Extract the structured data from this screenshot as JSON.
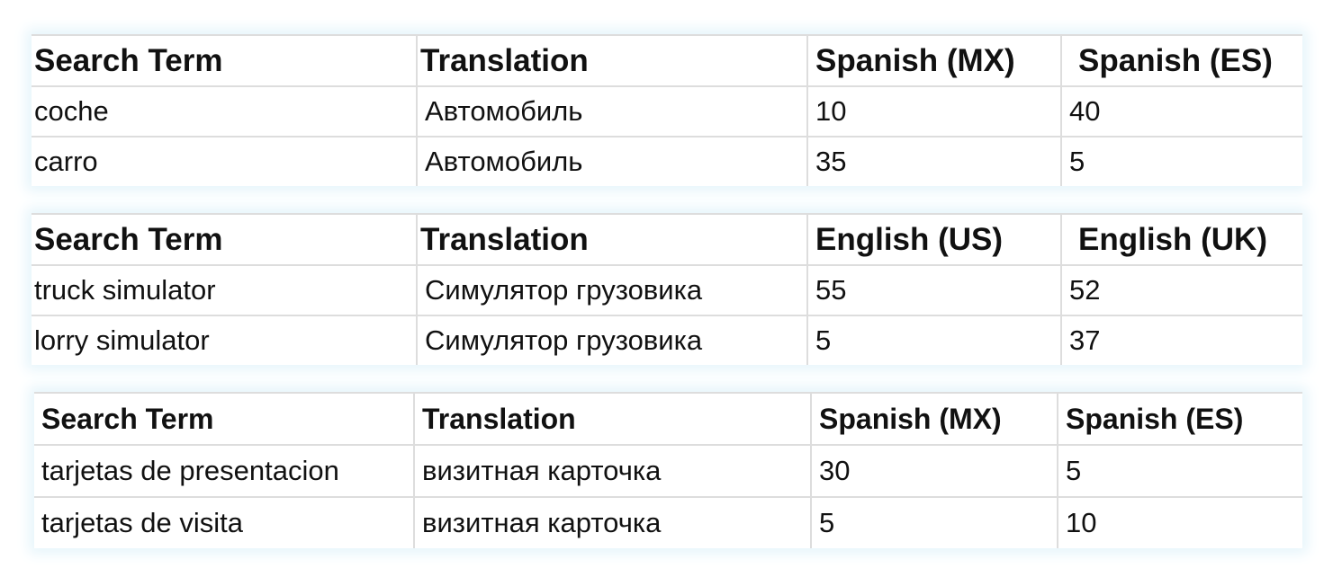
{
  "tables": [
    {
      "headers": [
        "Search Term",
        "Translation",
        "Spanish (MX)",
        "Spanish (ES)"
      ],
      "rows": [
        [
          "coche",
          "Автомобиль",
          "10",
          "40"
        ],
        [
          "carro",
          "Автомобиль",
          "35",
          "5"
        ]
      ]
    },
    {
      "headers": [
        "Search Term",
        "Translation",
        "English (US)",
        "English (UK)"
      ],
      "rows": [
        [
          "truck simulator",
          "Симулятор грузовика",
          "55",
          "52"
        ],
        [
          "lorry simulator",
          "Симулятор грузовика",
          "5",
          "37"
        ]
      ]
    },
    {
      "headers": [
        "Search Term",
        "Translation",
        "Spanish (MX)",
        "Spanish (ES)"
      ],
      "rows": [
        [
          "tarjetas de presentacion",
          "визитная карточка",
          "30",
          "5"
        ],
        [
          "tarjetas de visita",
          "визитная карточка",
          "5",
          "10"
        ]
      ]
    }
  ]
}
